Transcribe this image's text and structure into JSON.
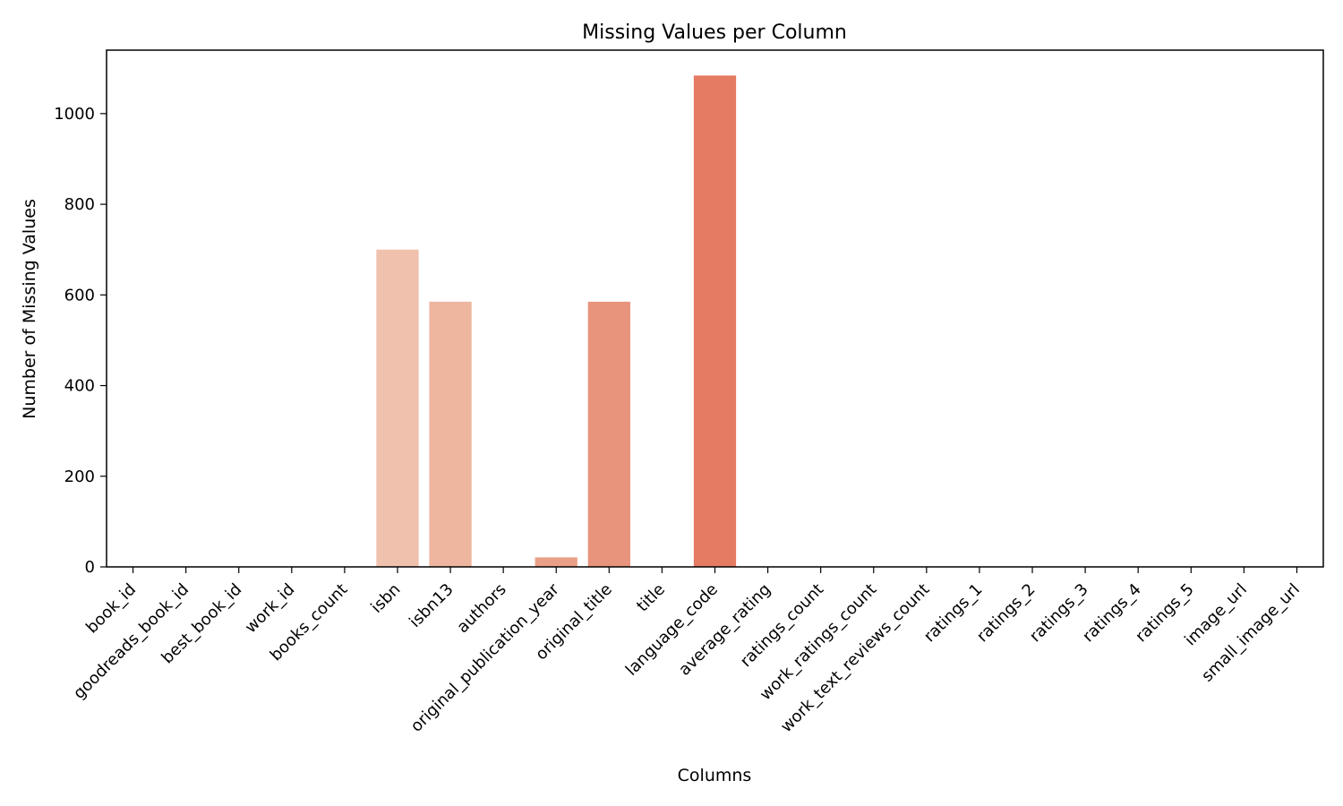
{
  "chart_data": {
    "type": "bar",
    "title": "Missing Values per Column",
    "xlabel": "Columns",
    "ylabel": "Number of Missing Values",
    "ylim": [
      0,
      1140
    ],
    "yticks": [
      0,
      200,
      400,
      600,
      800,
      1000
    ],
    "grid": false,
    "categories": [
      "book_id",
      "goodreads_book_id",
      "best_book_id",
      "work_id",
      "books_count",
      "isbn",
      "isbn13",
      "authors",
      "original_publication_year",
      "original_title",
      "title",
      "language_code",
      "average_rating",
      "ratings_count",
      "work_ratings_count",
      "work_text_reviews_count",
      "ratings_1",
      "ratings_2",
      "ratings_3",
      "ratings_4",
      "ratings_5",
      "image_url",
      "small_image_url"
    ],
    "values": [
      0,
      0,
      0,
      0,
      0,
      700,
      585,
      0,
      21,
      585,
      0,
      1084,
      0,
      0,
      0,
      0,
      0,
      0,
      0,
      0,
      0,
      0,
      0
    ],
    "colors": [
      "#fcf0e9",
      "#fbebe1",
      "#fae6d9",
      "#f9e0d1",
      "#f7d8c8",
      "#f0c1ad",
      "#eeb59f",
      "#ecac95",
      "#e9a086",
      "#e8937b",
      "#e68a70",
      "#e57b63",
      "#e3735b",
      "#e16a52",
      "#df614a",
      "#dd5842",
      "#da4f3b",
      "#d84734",
      "#d63f2d",
      "#d33828",
      "#d03123",
      "#cc2a1f",
      "#c8241b"
    ]
  }
}
